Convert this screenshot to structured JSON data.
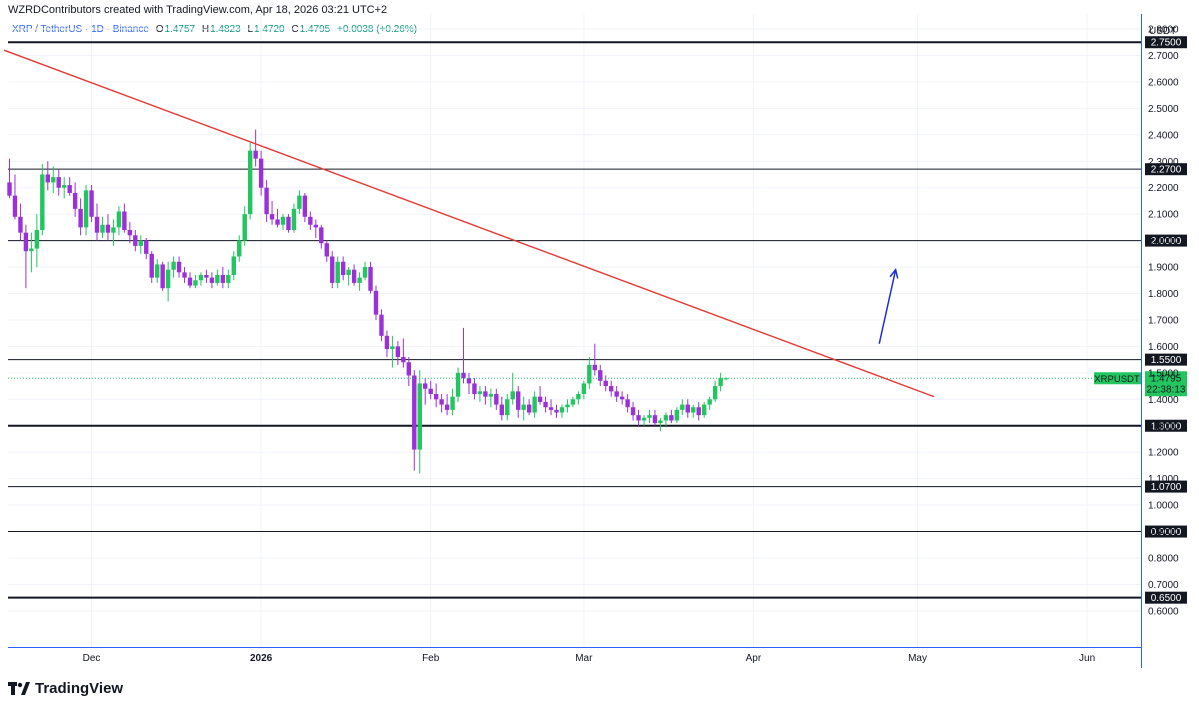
{
  "header": {
    "credit": "WZRDContributors created with TradingView.com, Apr 18, 2026 03:21 UTC+2"
  },
  "legend": {
    "symbol": "XRP / TetherUS · 1D · Binance",
    "open_label": "O",
    "open": "1.4757",
    "high_label": "H",
    "high": "1.4823",
    "low_label": "L",
    "low": "1.4720",
    "close_label": "C",
    "close": "1.4795",
    "change": "+0.0038 (+0.26%)"
  },
  "brand": {
    "name": "TradingView",
    "logo_icon": "tradingview-logo-icon"
  },
  "colors": {
    "up": "#22c55e",
    "down": "#9b30d9",
    "trendline": "#e53935",
    "arrow": "#1f2fd6",
    "price_tag": "#22c55e",
    "axis": "#2962ff"
  },
  "chart_data": {
    "type": "candlestick",
    "currency": "USDT",
    "ylim": [
      0.6,
      2.85
    ],
    "y_ticks": [
      0.6,
      0.7,
      0.8,
      0.9,
      1.0,
      1.1,
      1.2,
      1.3,
      1.4,
      1.5,
      1.6,
      1.7,
      1.8,
      1.9,
      2.0,
      2.1,
      2.2,
      2.3,
      2.4,
      2.5,
      2.6,
      2.7,
      2.8
    ],
    "x_ticks": [
      {
        "label": "Dec",
        "bold": false,
        "idx": 15
      },
      {
        "label": "2026",
        "bold": true,
        "idx": 46
      },
      {
        "label": "Feb",
        "bold": false,
        "idx": 77
      },
      {
        "label": "Mar",
        "bold": false,
        "idx": 105
      },
      {
        "label": "Apr",
        "bold": false,
        "idx": 136
      },
      {
        "label": "May",
        "bold": false,
        "idx": 166
      },
      {
        "label": "Jun",
        "bold": false,
        "idx": 197
      }
    ],
    "horizontal_levels": [
      {
        "value": 2.75,
        "label": "2.7500",
        "bold": true
      },
      {
        "value": 2.27,
        "label": "2.2700",
        "bold": false
      },
      {
        "value": 2.0,
        "label": "2.0000",
        "bold": false
      },
      {
        "value": 1.55,
        "label": "1.5500",
        "bold": false
      },
      {
        "value": 1.3,
        "label": "1.3000",
        "bold": true
      },
      {
        "value": 1.07,
        "label": "1.0700",
        "bold": false
      },
      {
        "value": 0.9,
        "label": "0.9000",
        "bold": false
      },
      {
        "value": 0.65,
        "label": "0.6500",
        "bold": true
      }
    ],
    "trendline": {
      "start": {
        "idx": -1,
        "value": 2.72
      },
      "end": {
        "idx": 169,
        "value": 1.41
      }
    },
    "arrow": {
      "start": {
        "idx": 159,
        "value": 1.61
      },
      "end": {
        "idx": 162,
        "value": 1.89
      }
    },
    "price_tag": {
      "symbol": "XRPUSDT",
      "value": 1.4795,
      "value_label": "1.4795",
      "countdown": "22:38:13"
    },
    "candles": [
      [
        2.22,
        2.31,
        2.16,
        2.17
      ],
      [
        2.17,
        2.25,
        2.08,
        2.09
      ],
      [
        2.09,
        2.14,
        2.0,
        2.03
      ],
      [
        2.03,
        2.06,
        1.82,
        1.96
      ],
      [
        1.96,
        2.03,
        1.88,
        1.97
      ],
      [
        1.97,
        2.1,
        1.9,
        2.04
      ],
      [
        2.04,
        2.29,
        2.02,
        2.25
      ],
      [
        2.25,
        2.3,
        2.19,
        2.22
      ],
      [
        2.22,
        2.28,
        2.18,
        2.24
      ],
      [
        2.24,
        2.27,
        2.17,
        2.2
      ],
      [
        2.2,
        2.24,
        2.16,
        2.21
      ],
      [
        2.21,
        2.24,
        2.17,
        2.18
      ],
      [
        2.18,
        2.22,
        2.09,
        2.12
      ],
      [
        2.12,
        2.16,
        2.02,
        2.05
      ],
      [
        2.05,
        2.21,
        2.02,
        2.19
      ],
      [
        2.19,
        2.21,
        2.07,
        2.09
      ],
      [
        2.09,
        2.14,
        2.0,
        2.03
      ],
      [
        2.03,
        2.09,
        2.01,
        2.06
      ],
      [
        2.06,
        2.1,
        2.0,
        2.03
      ],
      [
        2.03,
        2.08,
        1.98,
        2.05
      ],
      [
        2.05,
        2.13,
        2.02,
        2.11
      ],
      [
        2.11,
        2.14,
        2.03,
        2.04
      ],
      [
        2.04,
        2.07,
        1.99,
        2.02
      ],
      [
        2.02,
        2.04,
        1.96,
        1.98
      ],
      [
        1.98,
        2.02,
        1.95,
        2.0
      ],
      [
        2.0,
        2.01,
        1.93,
        1.95
      ],
      [
        1.95,
        1.96,
        1.84,
        1.86
      ],
      [
        1.86,
        1.93,
        1.84,
        1.91
      ],
      [
        1.91,
        1.92,
        1.81,
        1.82
      ],
      [
        1.82,
        1.92,
        1.77,
        1.89
      ],
      [
        1.89,
        1.94,
        1.86,
        1.92
      ],
      [
        1.92,
        1.94,
        1.86,
        1.88
      ],
      [
        1.88,
        1.9,
        1.84,
        1.86
      ],
      [
        1.86,
        1.88,
        1.82,
        1.83
      ],
      [
        1.83,
        1.87,
        1.82,
        1.85
      ],
      [
        1.85,
        1.88,
        1.83,
        1.87
      ],
      [
        1.87,
        1.89,
        1.84,
        1.86
      ],
      [
        1.86,
        1.88,
        1.82,
        1.84
      ],
      [
        1.84,
        1.89,
        1.83,
        1.87
      ],
      [
        1.87,
        1.9,
        1.82,
        1.84
      ],
      [
        1.84,
        1.89,
        1.82,
        1.87
      ],
      [
        1.87,
        1.96,
        1.85,
        1.94
      ],
      [
        1.94,
        2.02,
        1.92,
        2.0
      ],
      [
        2.0,
        2.13,
        1.98,
        2.1
      ],
      [
        2.1,
        2.37,
        2.08,
        2.34
      ],
      [
        2.34,
        2.42,
        2.28,
        2.31
      ],
      [
        2.31,
        2.34,
        2.17,
        2.2
      ],
      [
        2.2,
        2.23,
        2.07,
        2.1
      ],
      [
        2.1,
        2.15,
        2.06,
        2.08
      ],
      [
        2.08,
        2.12,
        2.05,
        2.06
      ],
      [
        2.06,
        2.1,
        2.04,
        2.09
      ],
      [
        2.09,
        2.1,
        2.03,
        2.04
      ],
      [
        2.04,
        2.14,
        2.03,
        2.12
      ],
      [
        2.12,
        2.19,
        2.1,
        2.17
      ],
      [
        2.17,
        2.18,
        2.07,
        2.09
      ],
      [
        2.09,
        2.11,
        2.04,
        2.06
      ],
      [
        2.06,
        2.08,
        2.01,
        2.05
      ],
      [
        2.05,
        2.06,
        1.97,
        1.99
      ],
      [
        1.99,
        2.0,
        1.92,
        1.94
      ],
      [
        1.94,
        1.96,
        1.82,
        1.84
      ],
      [
        1.84,
        1.94,
        1.82,
        1.92
      ],
      [
        1.92,
        1.94,
        1.85,
        1.87
      ],
      [
        1.87,
        1.9,
        1.83,
        1.89
      ],
      [
        1.89,
        1.91,
        1.83,
        1.84
      ],
      [
        1.84,
        1.88,
        1.81,
        1.86
      ],
      [
        1.86,
        1.92,
        1.85,
        1.9
      ],
      [
        1.9,
        1.92,
        1.8,
        1.81
      ],
      [
        1.81,
        1.83,
        1.7,
        1.72
      ],
      [
        1.72,
        1.74,
        1.62,
        1.64
      ],
      [
        1.64,
        1.66,
        1.56,
        1.59
      ],
      [
        1.59,
        1.64,
        1.52,
        1.6
      ],
      [
        1.6,
        1.62,
        1.53,
        1.56
      ],
      [
        1.56,
        1.63,
        1.52,
        1.54
      ],
      [
        1.54,
        1.56,
        1.45,
        1.49
      ],
      [
        1.49,
        1.51,
        1.13,
        1.21
      ],
      [
        1.21,
        1.51,
        1.12,
        1.46
      ],
      [
        1.46,
        1.48,
        1.38,
        1.44
      ],
      [
        1.44,
        1.47,
        1.4,
        1.42
      ],
      [
        1.42,
        1.46,
        1.37,
        1.4
      ],
      [
        1.4,
        1.42,
        1.35,
        1.38
      ],
      [
        1.38,
        1.42,
        1.34,
        1.36
      ],
      [
        1.36,
        1.44,
        1.34,
        1.41
      ],
      [
        1.41,
        1.52,
        1.39,
        1.5
      ],
      [
        1.5,
        1.67,
        1.46,
        1.48
      ],
      [
        1.48,
        1.5,
        1.42,
        1.46
      ],
      [
        1.46,
        1.48,
        1.4,
        1.42
      ],
      [
        1.42,
        1.45,
        1.39,
        1.43
      ],
      [
        1.43,
        1.45,
        1.38,
        1.41
      ],
      [
        1.41,
        1.44,
        1.37,
        1.42
      ],
      [
        1.42,
        1.44,
        1.36,
        1.38
      ],
      [
        1.38,
        1.41,
        1.32,
        1.34
      ],
      [
        1.34,
        1.42,
        1.32,
        1.4
      ],
      [
        1.4,
        1.5,
        1.38,
        1.43
      ],
      [
        1.43,
        1.45,
        1.33,
        1.36
      ],
      [
        1.36,
        1.41,
        1.32,
        1.38
      ],
      [
        1.38,
        1.4,
        1.34,
        1.35
      ],
      [
        1.35,
        1.43,
        1.33,
        1.41
      ],
      [
        1.41,
        1.45,
        1.38,
        1.39
      ],
      [
        1.39,
        1.41,
        1.35,
        1.37
      ],
      [
        1.37,
        1.4,
        1.34,
        1.36
      ],
      [
        1.36,
        1.38,
        1.33,
        1.35
      ],
      [
        1.35,
        1.38,
        1.33,
        1.37
      ],
      [
        1.37,
        1.4,
        1.35,
        1.38
      ],
      [
        1.38,
        1.41,
        1.37,
        1.4
      ],
      [
        1.4,
        1.43,
        1.38,
        1.42
      ],
      [
        1.42,
        1.47,
        1.4,
        1.46
      ],
      [
        1.46,
        1.56,
        1.44,
        1.53
      ],
      [
        1.53,
        1.61,
        1.49,
        1.51
      ],
      [
        1.51,
        1.53,
        1.45,
        1.47
      ],
      [
        1.47,
        1.49,
        1.43,
        1.45
      ],
      [
        1.45,
        1.47,
        1.41,
        1.43
      ],
      [
        1.43,
        1.45,
        1.39,
        1.41
      ],
      [
        1.41,
        1.43,
        1.38,
        1.4
      ],
      [
        1.4,
        1.42,
        1.35,
        1.37
      ],
      [
        1.37,
        1.39,
        1.32,
        1.34
      ],
      [
        1.34,
        1.36,
        1.3,
        1.32
      ],
      [
        1.32,
        1.34,
        1.3,
        1.33
      ],
      [
        1.33,
        1.36,
        1.31,
        1.34
      ],
      [
        1.34,
        1.36,
        1.3,
        1.31
      ],
      [
        1.31,
        1.33,
        1.28,
        1.32
      ],
      [
        1.32,
        1.35,
        1.3,
        1.34
      ],
      [
        1.34,
        1.36,
        1.31,
        1.32
      ],
      [
        1.32,
        1.37,
        1.31,
        1.36
      ],
      [
        1.36,
        1.4,
        1.34,
        1.38
      ],
      [
        1.38,
        1.4,
        1.33,
        1.35
      ],
      [
        1.35,
        1.38,
        1.33,
        1.37
      ],
      [
        1.37,
        1.39,
        1.32,
        1.34
      ],
      [
        1.34,
        1.39,
        1.33,
        1.38
      ],
      [
        1.38,
        1.41,
        1.36,
        1.4
      ],
      [
        1.4,
        1.47,
        1.39,
        1.45
      ],
      [
        1.45,
        1.5,
        1.43,
        1.48
      ],
      [
        1.4757,
        1.4823,
        1.472,
        1.4795
      ]
    ]
  }
}
